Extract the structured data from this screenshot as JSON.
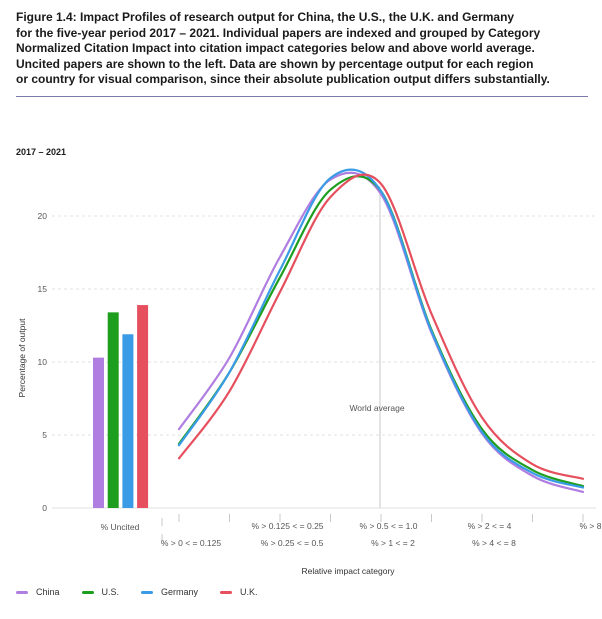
{
  "figure": {
    "caption_lines": [
      "Figure 1.4: Impact Profiles of research output for China, the U.S., the U.K. and Germany",
      "for the five-year period 2017 – 2021. Individual papers are indexed and grouped by Category",
      "Normalized Citation Impact into citation impact categories below and above world average.",
      "Uncited papers are shown to the left. Data are shown by percentage output for each region",
      "or country for visual comparison, since their absolute publication output differs substantially."
    ],
    "period_label": "2017 – 2021"
  },
  "chart_data": {
    "type": "line",
    "ylabel": "Percentage of output",
    "xlabel": "Relative impact category",
    "ylim": [
      0,
      25
    ],
    "yticks": [
      0,
      5,
      10,
      15,
      20
    ],
    "annotation": "World average",
    "uncited_label": "% Uncited",
    "categories_upper": [
      "% > 0.125 < = 0.25",
      "% > 0.5 < = 1.0",
      "% > 2 < = 4",
      "% > 8"
    ],
    "categories_lower": [
      "% > 0 < = 0.125",
      "% > 0.25 < = 0.5",
      "% > 1 < = 2",
      "% > 4 < = 8"
    ],
    "uncited": [
      {
        "name": "China",
        "value": 10.3
      },
      {
        "name": "U.S.",
        "value": 13.4
      },
      {
        "name": "Germany",
        "value": 11.9
      },
      {
        "name": "U.K.",
        "value": 13.9
      }
    ],
    "series": [
      {
        "name": "China",
        "color": "#b07ee0",
        "values": [
          5.4,
          10.3,
          17.2,
          22.5,
          21.5,
          12.0,
          5.1,
          2.2,
          1.1
        ]
      },
      {
        "name": "U.S.",
        "color": "#1e9e1e",
        "values": [
          4.4,
          9.3,
          15.8,
          21.8,
          21.7,
          12.2,
          5.4,
          2.6,
          1.5
        ]
      },
      {
        "name": "Germany",
        "color": "#3a9be6",
        "values": [
          4.3,
          9.3,
          16.3,
          22.6,
          21.7,
          12.1,
          5.2,
          2.4,
          1.4
        ]
      },
      {
        "name": "U.K.",
        "color": "#e6505e",
        "values": [
          3.4,
          8.0,
          14.8,
          21.3,
          22.2,
          13.3,
          6.2,
          3.0,
          2.0
        ]
      }
    ]
  },
  "legend": [
    {
      "name": "China",
      "color": "#b07ee0"
    },
    {
      "name": "U.S.",
      "color": "#1e9e1e"
    },
    {
      "name": "Germany",
      "color": "#3a9be6"
    },
    {
      "name": "U.K.",
      "color": "#e6505e"
    }
  ]
}
